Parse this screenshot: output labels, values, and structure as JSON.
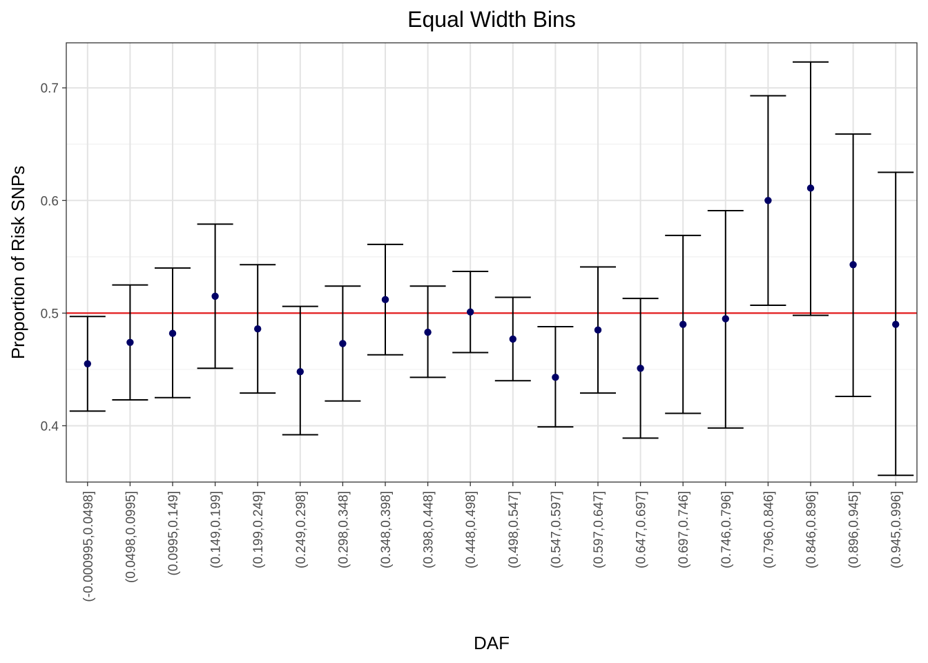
{
  "chart_data": {
    "type": "scatter",
    "title": "Equal Width Bins",
    "xlabel": "DAF",
    "ylabel": "Proportion of Risk SNPs",
    "ylim": [
      0.35,
      0.74
    ],
    "yticks": [
      0.4,
      0.5,
      0.6,
      0.7
    ],
    "ytick_labels": [
      "0.4",
      "0.5",
      "0.6",
      "0.7"
    ],
    "grid": true,
    "reference_line": {
      "y": 0.5,
      "color": "#e31a1c"
    },
    "point_color": "#000066",
    "errorbar_color": "#000000",
    "categories": [
      "(-0.000995,0.0498]",
      "(0.0498,0.0995]",
      "(0.0995,0.149]",
      "(0.149,0.199]",
      "(0.199,0.249]",
      "(0.249,0.298]",
      "(0.298,0.348]",
      "(0.348,0.398]",
      "(0.398,0.448]",
      "(0.448,0.498]",
      "(0.498,0.547]",
      "(0.547,0.597]",
      "(0.597,0.647]",
      "(0.647,0.697]",
      "(0.697,0.746]",
      "(0.746,0.796]",
      "(0.796,0.846]",
      "(0.846,0.896]",
      "(0.896,0.945]",
      "(0.945,0.996]"
    ],
    "values": [
      0.455,
      0.474,
      0.482,
      0.515,
      0.486,
      0.448,
      0.473,
      0.512,
      0.483,
      0.501,
      0.477,
      0.443,
      0.485,
      0.451,
      0.49,
      0.495,
      0.6,
      0.611,
      0.543,
      0.49
    ],
    "lower": [
      0.413,
      0.423,
      0.425,
      0.451,
      0.429,
      0.392,
      0.422,
      0.463,
      0.443,
      0.465,
      0.44,
      0.399,
      0.429,
      0.389,
      0.411,
      0.398,
      0.507,
      0.498,
      0.426,
      0.356
    ],
    "upper": [
      0.497,
      0.525,
      0.54,
      0.579,
      0.543,
      0.506,
      0.524,
      0.561,
      0.524,
      0.537,
      0.514,
      0.488,
      0.541,
      0.513,
      0.569,
      0.591,
      0.693,
      0.723,
      0.659,
      0.625
    ]
  }
}
